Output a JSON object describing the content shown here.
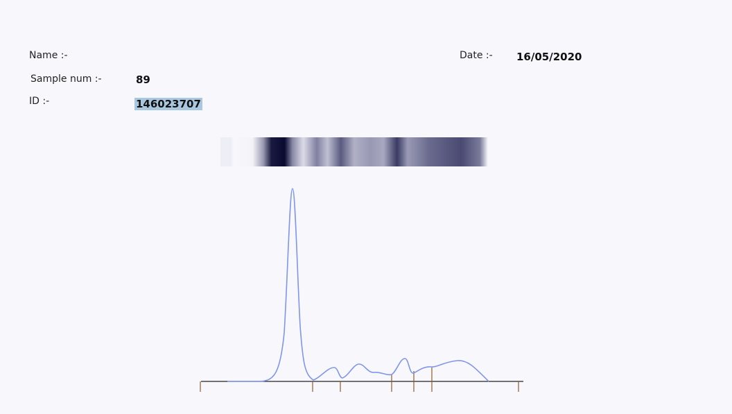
{
  "header": {
    "name_label": "Name :-",
    "date_label": "Date :-",
    "date_value": "16/05/2020",
    "sample_label": "Sample num :-",
    "sample_value": "89",
    "id_label": "ID :-",
    "id_value": "146023707"
  }
}
